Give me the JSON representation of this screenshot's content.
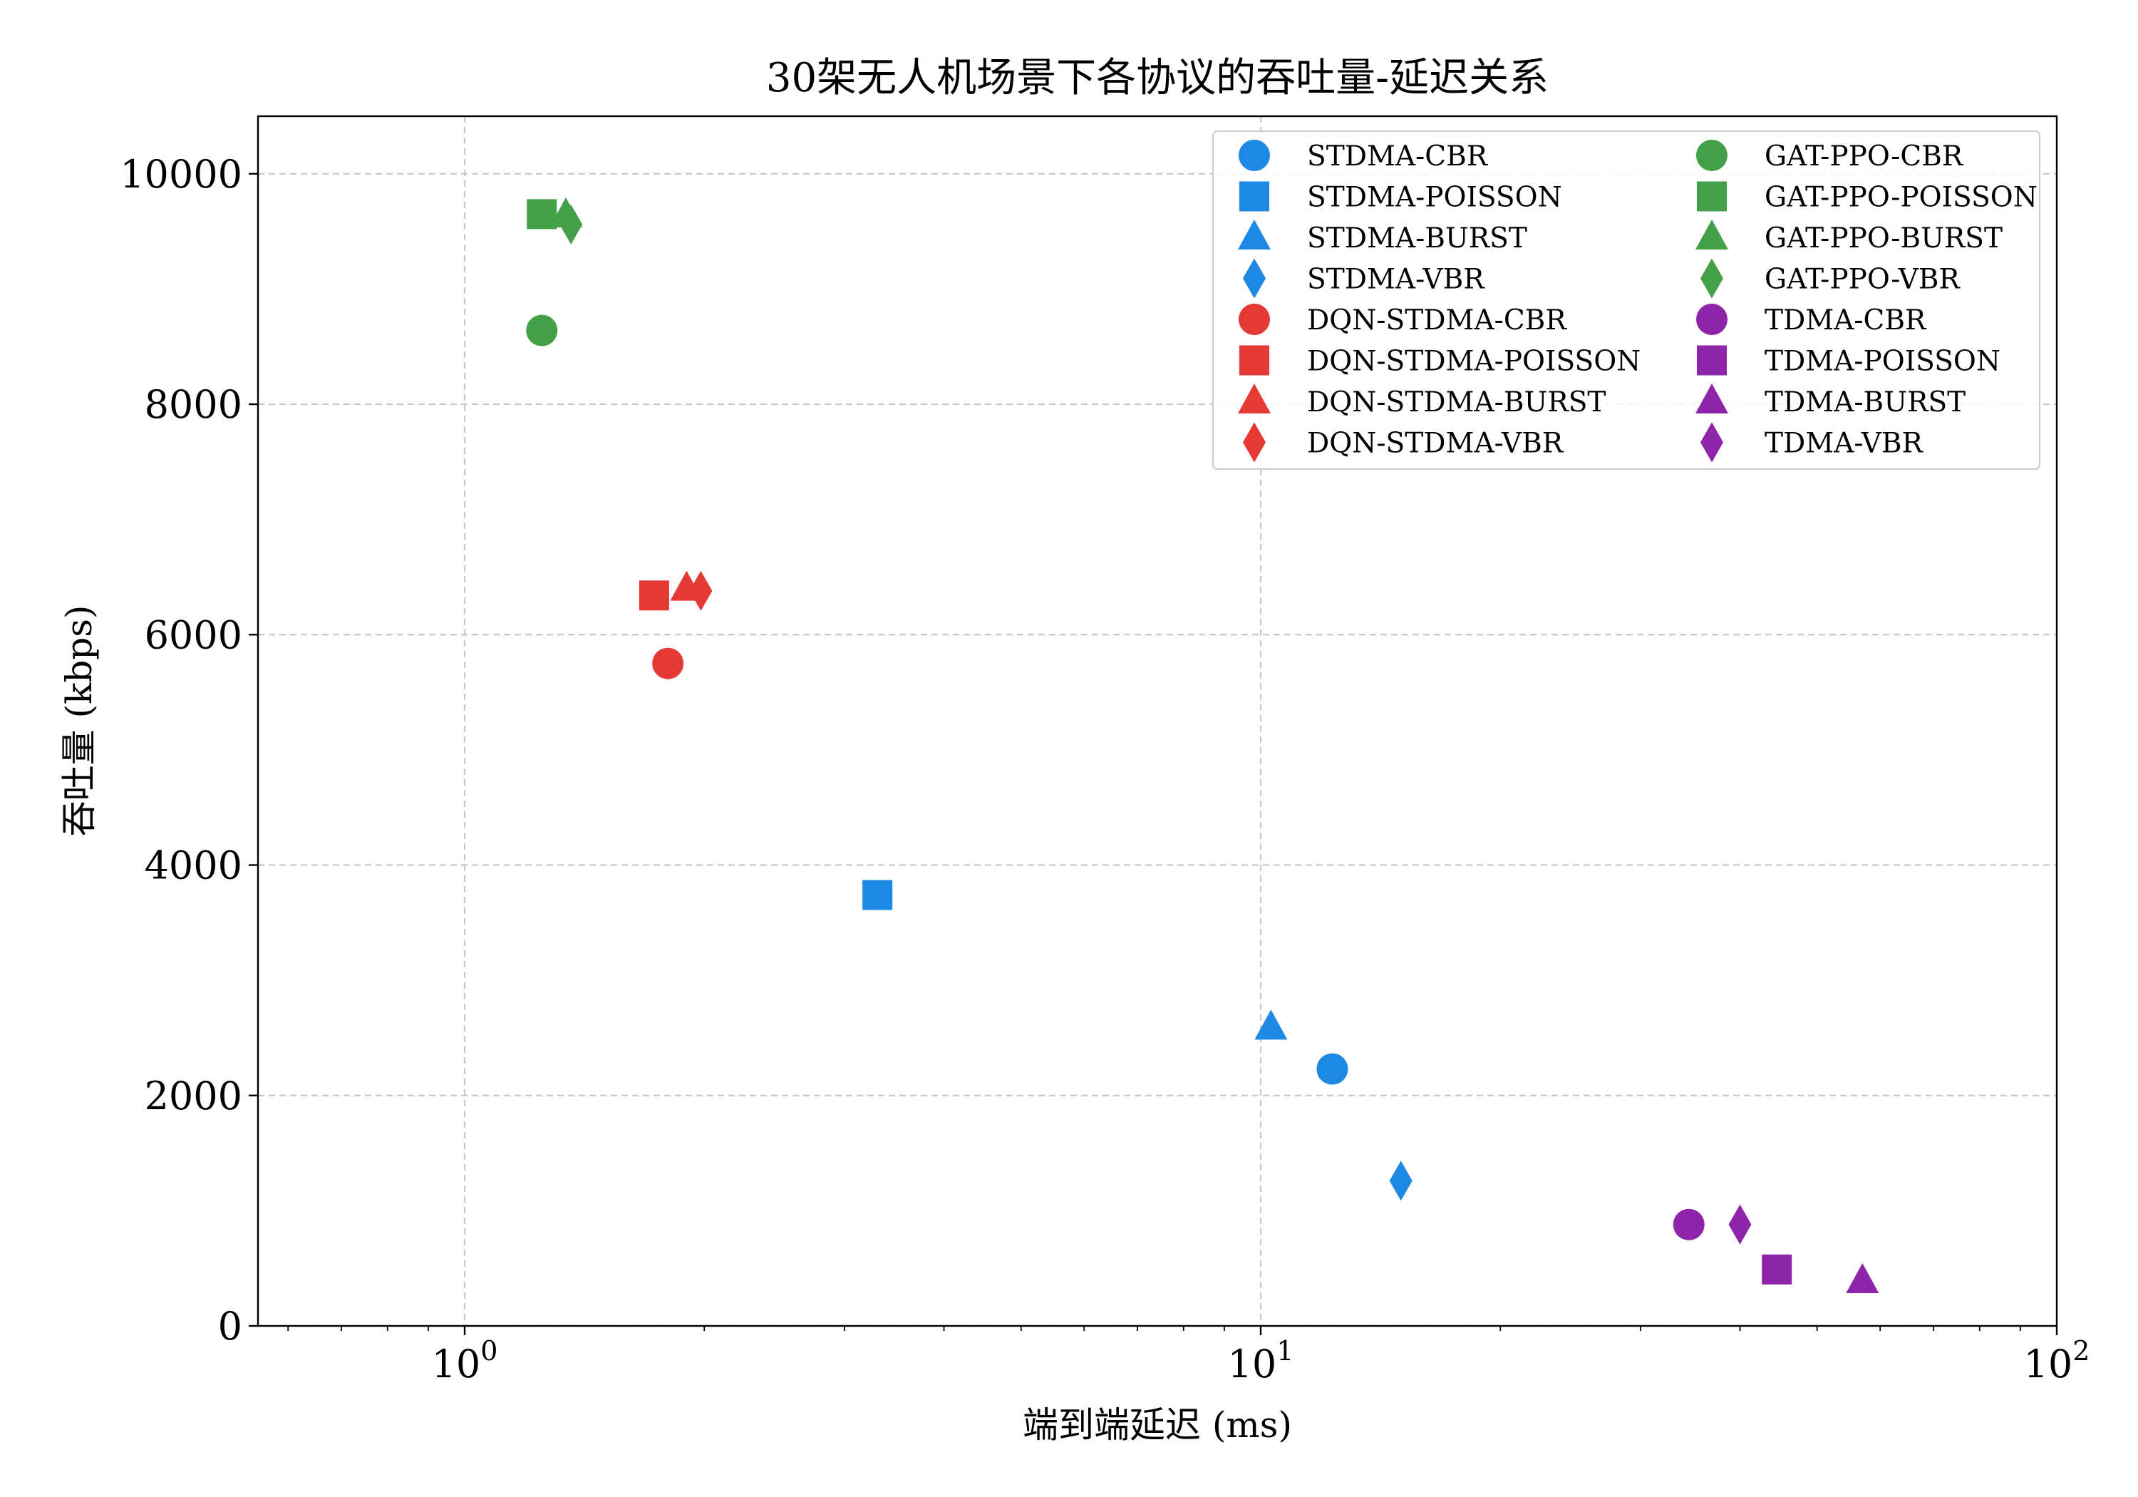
{
  "chart_data": {
    "type": "scatter",
    "title": "30架无人机场景下各协议的吞吐量-延迟关系",
    "xlabel": "端到端延迟 (ms)",
    "ylabel": "吞吐量 (kbps)",
    "x_scale": "log",
    "xlim": [
      0.55,
      100
    ],
    "ylim": [
      0,
      10500
    ],
    "x_ticks": [
      {
        "value": 1,
        "base": "10",
        "exp": "0"
      },
      {
        "value": 10,
        "base": "10",
        "exp": "1"
      },
      {
        "value": 100,
        "base": "10",
        "exp": "2"
      }
    ],
    "y_ticks": [
      0,
      2000,
      4000,
      6000,
      8000,
      10000
    ],
    "grid": true,
    "legend_position": "top-right",
    "legend_columns": 2,
    "series": [
      {
        "name": "STDMA-CBR",
        "color": "#1e88e5",
        "marker": "circle",
        "x": [
          12.3
        ],
        "y": [
          2230
        ]
      },
      {
        "name": "STDMA-POISSON",
        "color": "#1e88e5",
        "marker": "square",
        "x": [
          3.3
        ],
        "y": [
          3740
        ]
      },
      {
        "name": "STDMA-BURST",
        "color": "#1e88e5",
        "marker": "triangle",
        "x": [
          10.3
        ],
        "y": [
          2590
        ]
      },
      {
        "name": "STDMA-VBR",
        "color": "#1e88e5",
        "marker": "diamond",
        "x": [
          15.0
        ],
        "y": [
          1260
        ]
      },
      {
        "name": "DQN-STDMA-CBR",
        "color": "#e53935",
        "marker": "circle",
        "x": [
          1.8
        ],
        "y": [
          5750
        ]
      },
      {
        "name": "DQN-STDMA-POISSON",
        "color": "#e53935",
        "marker": "square",
        "x": [
          1.73
        ],
        "y": [
          6340
        ]
      },
      {
        "name": "DQN-STDMA-BURST",
        "color": "#e53935",
        "marker": "triangle",
        "x": [
          1.9
        ],
        "y": [
          6400
        ]
      },
      {
        "name": "DQN-STDMA-VBR",
        "color": "#e53935",
        "marker": "diamond",
        "x": [
          1.98
        ],
        "y": [
          6380
        ]
      },
      {
        "name": "GAT-PPO-CBR",
        "color": "#43a047",
        "marker": "circle",
        "x": [
          1.25
        ],
        "y": [
          8640
        ]
      },
      {
        "name": "GAT-PPO-POISSON",
        "color": "#43a047",
        "marker": "square",
        "x": [
          1.25
        ],
        "y": [
          9650
        ]
      },
      {
        "name": "GAT-PPO-BURST",
        "color": "#43a047",
        "marker": "triangle",
        "x": [
          1.34
        ],
        "y": [
          9640
        ]
      },
      {
        "name": "GAT-PPO-VBR",
        "color": "#43a047",
        "marker": "diamond",
        "x": [
          1.36
        ],
        "y": [
          9560
        ]
      },
      {
        "name": "TDMA-CBR",
        "color": "#8e24aa",
        "marker": "circle",
        "x": [
          34.5
        ],
        "y": [
          880
        ]
      },
      {
        "name": "TDMA-POISSON",
        "color": "#8e24aa",
        "marker": "square",
        "x": [
          44.5
        ],
        "y": [
          490
        ]
      },
      {
        "name": "TDMA-BURST",
        "color": "#8e24aa",
        "marker": "triangle",
        "x": [
          57.0
        ],
        "y": [
          390
        ]
      },
      {
        "name": "TDMA-VBR",
        "color": "#8e24aa",
        "marker": "diamond",
        "x": [
          40.0
        ],
        "y": [
          880
        ]
      }
    ]
  }
}
